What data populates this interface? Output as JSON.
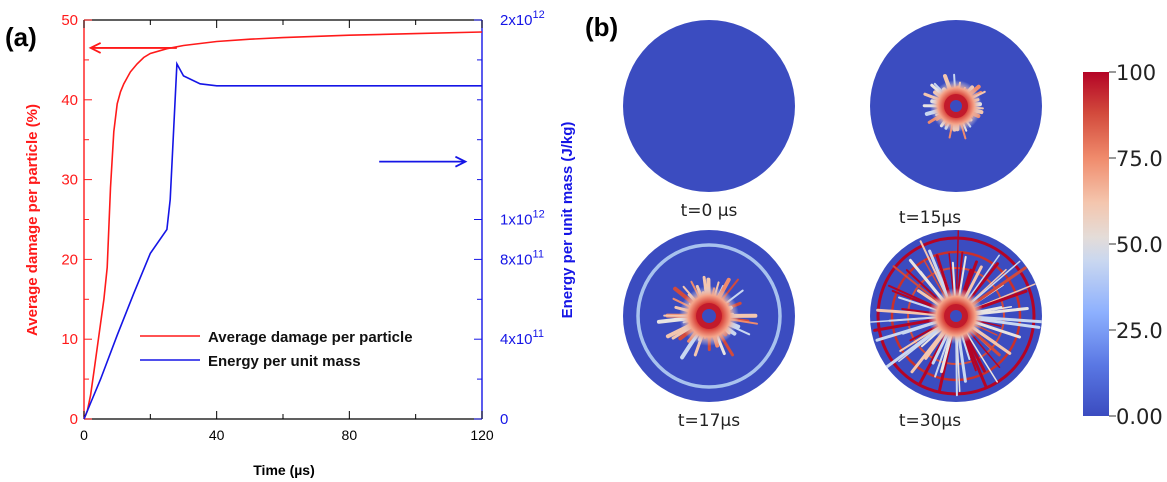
{
  "panel_a_label": "(a)",
  "panel_b_label": "(b)",
  "colors": {
    "damage": "#ff1a1a",
    "energy": "#1515e6",
    "disk_blue": "#3b4cc0",
    "colormap": [
      "#3b4cc0",
      "#7b9ff9",
      "#c0d4f5",
      "#dddddd",
      "#f2cbb7",
      "#ee8468",
      "#b40426"
    ]
  },
  "chart_data": [
    {
      "type": "line",
      "panel": "(a)",
      "xlabel": "Time (µs)",
      "ylabel": "Average damage per particle (%)",
      "y2label": "Energy per unit mass (J/kg)",
      "xlim": [
        0,
        120
      ],
      "ylim": [
        0,
        50
      ],
      "y2lim": [
        0,
        2000000000000
      ],
      "xticks": [
        0,
        40,
        80,
        120
      ],
      "xtick_labels": [
        "0",
        "40",
        "80",
        "120"
      ],
      "yticks": [
        0,
        10,
        20,
        30,
        40,
        50
      ],
      "ytick_labels": [
        "0",
        "10",
        "20",
        "30",
        "40",
        "50"
      ],
      "y2ticks": [
        0,
        400000000000,
        800000000000,
        1000000000000,
        2000000000000
      ],
      "y2tick_labels": [
        {
          "base": "0",
          "exp": ""
        },
        {
          "base": "4x10",
          "exp": "11"
        },
        {
          "base": "8x10",
          "exp": "11"
        },
        {
          "base": "1x10",
          "exp": "12"
        },
        {
          "base": "2x10",
          "exp": "12"
        }
      ],
      "legend_position": "lower-center",
      "series": [
        {
          "name": "Average damage per particle",
          "axis": "left",
          "x": [
            0,
            1,
            2,
            3,
            4,
            5,
            6,
            7,
            8,
            9,
            10,
            11,
            12,
            14,
            16,
            18,
            20,
            25,
            30,
            40,
            50,
            60,
            80,
            100,
            120
          ],
          "y": [
            0,
            1,
            3,
            6,
            9,
            12,
            15,
            19,
            29,
            36,
            39.5,
            41,
            42,
            43.5,
            44.5,
            45.3,
            45.8,
            46.4,
            46.8,
            47.3,
            47.6,
            47.8,
            48.1,
            48.3,
            48.5
          ]
        },
        {
          "name": "Energy per unit mass",
          "axis": "right",
          "x": [
            0,
            2,
            5,
            10,
            15,
            20,
            25,
            26,
            28,
            30,
            35,
            40,
            60,
            80,
            120
          ],
          "y": [
            0,
            80000000000,
            200000000000,
            420000000000,
            630000000000,
            830000000000,
            950000000000,
            1100000000000,
            1780000000000,
            1720000000000,
            1680000000000,
            1670000000000,
            1670000000000,
            1670000000000,
            1670000000000
          ]
        }
      ],
      "annotations": [
        {
          "type": "arrow",
          "direction": "left",
          "series": "Average damage per particle",
          "x_from": 28,
          "x_to": 2,
          "y": 46.5
        },
        {
          "type": "arrow",
          "direction": "right",
          "series": "Energy per unit mass",
          "x_from": 89,
          "x_to": 115,
          "y": 1290000000000
        }
      ]
    },
    {
      "type": "heatmap",
      "panel": "(b)",
      "colorbar": {
        "vmin": 0,
        "vmax": 100,
        "ticks": [
          0,
          25,
          50,
          75,
          100
        ],
        "tick_labels": [
          "0.00",
          "25.0",
          "50.0",
          "75.0",
          "100"
        ]
      },
      "snapshots": [
        {
          "label": "t=0 µs",
          "time": 0
        },
        {
          "label": "t=15µs",
          "time": 15
        },
        {
          "label": "t=17µs",
          "time": 17
        },
        {
          "label": "t=30µs",
          "time": 30
        }
      ]
    }
  ]
}
